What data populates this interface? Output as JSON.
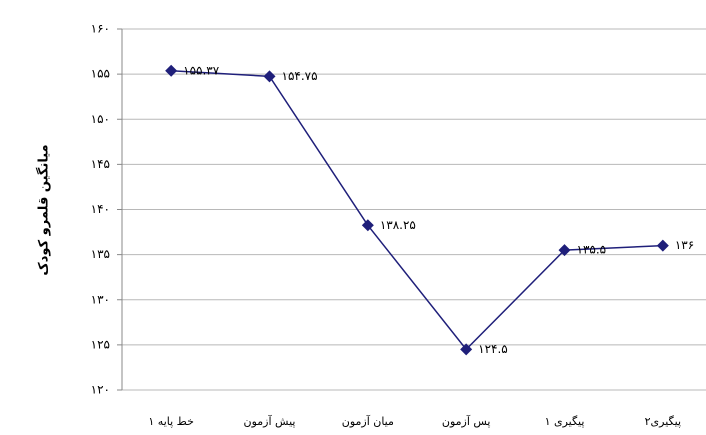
{
  "chart_data": {
    "type": "line",
    "y_label": "میانگین قلمرو کودک",
    "categories": [
      "خط پایه ۱",
      "پیش آزمون",
      "میان آزمون",
      "پس آزمون",
      "پیگیری ۱",
      "پیگیری۲"
    ],
    "series": [
      {
        "color": "#1f1f7a",
        "values": [
          155.37,
          154.75,
          138.25,
          124.5,
          135.5,
          136
        ],
        "value_labels": [
          "۱۵۵.۳۷",
          "۱۵۴.۷۵",
          "۱۳۸.۲۵",
          "۱۲۴.۵",
          "۱۳۵.۵",
          "۱۳۶"
        ]
      }
    ],
    "ylim": [
      120,
      160
    ],
    "yticks": [
      {
        "value": 120,
        "label": "۱۲۰"
      },
      {
        "value": 125,
        "label": "۱۲۵"
      },
      {
        "value": 130,
        "label": "۱۳۰"
      },
      {
        "value": 135,
        "label": "۱۳۵"
      },
      {
        "value": 140,
        "label": "۱۴۰"
      },
      {
        "value": 145,
        "label": "۱۴۵"
      },
      {
        "value": 150,
        "label": "۱۵۰"
      },
      {
        "value": 155,
        "label": "۱۵۵"
      },
      {
        "value": 160,
        "label": "۱۶۰"
      }
    ],
    "grid": true
  }
}
